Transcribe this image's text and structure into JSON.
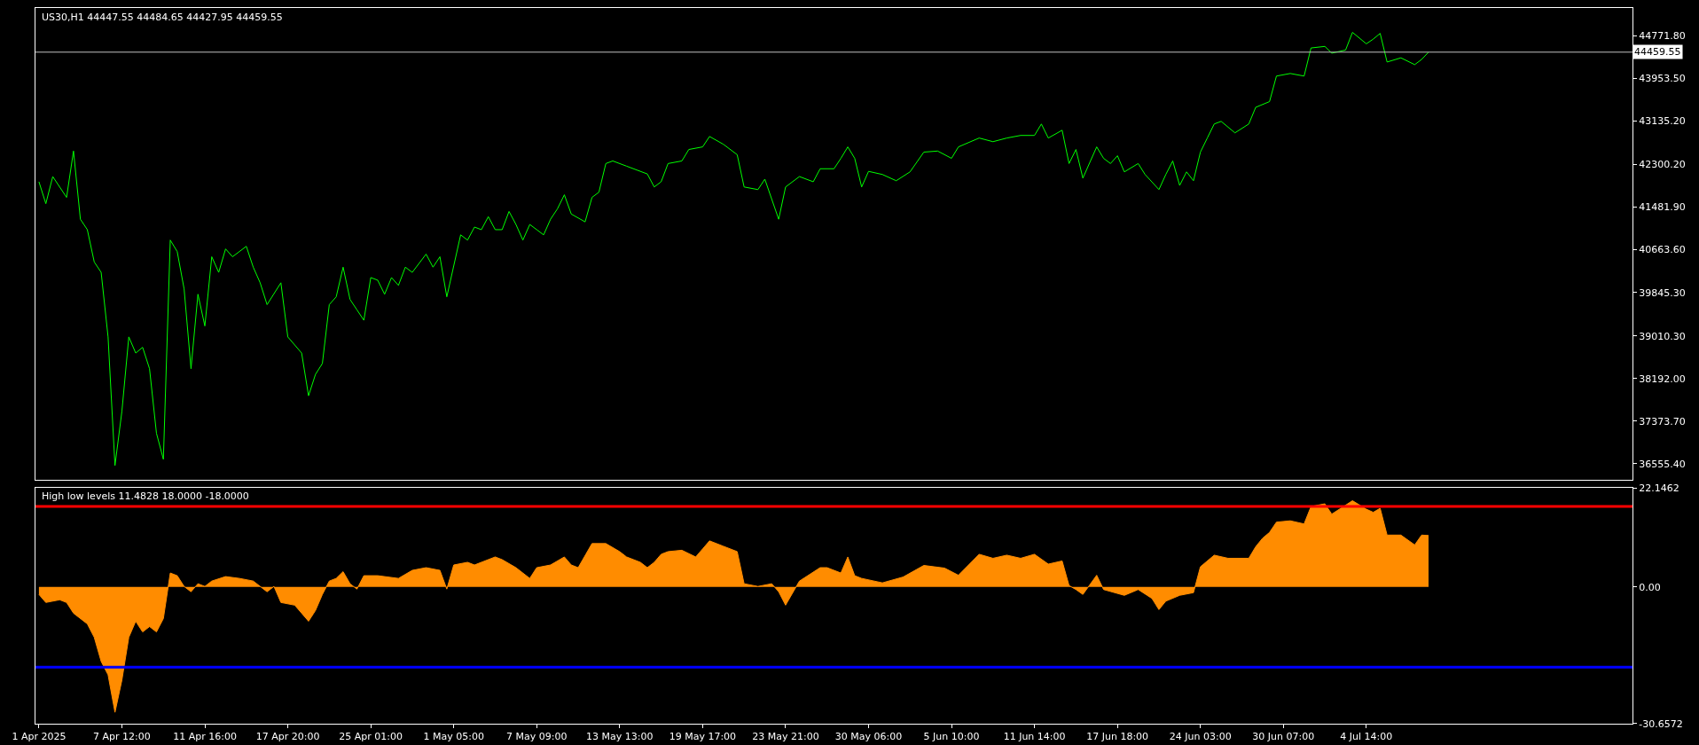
{
  "chart_data": [
    {
      "type": "line",
      "title": "US30,H1 44447.55 44484.65 44427.95 44459.55",
      "color": "#00ff00",
      "categories": [
        null,
        null,
        null,
        null,
        null,
        null,
        null,
        null,
        null,
        null,
        null,
        null,
        null,
        null,
        null,
        null,
        null,
        null,
        null,
        null,
        null,
        null,
        null,
        null,
        null,
        null,
        null,
        null,
        null,
        null,
        null,
        null,
        null,
        null,
        null,
        null,
        null,
        null,
        null,
        null,
        null,
        null,
        null,
        null,
        null,
        null,
        null,
        null,
        null,
        null,
        null,
        null,
        null,
        null,
        null,
        null,
        null,
        null,
        null,
        null,
        null,
        null,
        null,
        null,
        null,
        null,
        null,
        null,
        null,
        null,
        null,
        null,
        null,
        null,
        null,
        null,
        null,
        null,
        null,
        null,
        null,
        null,
        null,
        null,
        null,
        null,
        null,
        null,
        null,
        null,
        null,
        null,
        null,
        null,
        null,
        null,
        null,
        null,
        null,
        null,
        null,
        null,
        null,
        null,
        null,
        null,
        null,
        null,
        null,
        null,
        null,
        null,
        null,
        null,
        null,
        null,
        null,
        null,
        null,
        null,
        null,
        null,
        null,
        null,
        null,
        null,
        null,
        null,
        null,
        null,
        null,
        null,
        null,
        null,
        null,
        null,
        null,
        null,
        null,
        null,
        null,
        null,
        null,
        null,
        null,
        null,
        null,
        null,
        null,
        null,
        null,
        null,
        null,
        null,
        null,
        null,
        null,
        null,
        null,
        null,
        null,
        null,
        null,
        null,
        null,
        null,
        null,
        null,
        null,
        null,
        null,
        null,
        null,
        null,
        null,
        null,
        null,
        null,
        null,
        null,
        null,
        null,
        null,
        null,
        null,
        null,
        null,
        null,
        null,
        null,
        null,
        null,
        null,
        null,
        null,
        null,
        null,
        null,
        null,
        null,
        null,
        null,
        null,
        null,
        null,
        null,
        null,
        null,
        null,
        null,
        null,
        null,
        null,
        null,
        null,
        null,
        null,
        null,
        null,
        null,
        null,
        null,
        null,
        null,
        null,
        null,
        null,
        null,
        null,
        null,
        null
      ],
      "values": [
        41970,
        41550,
        42070,
        null,
        41670,
        42560,
        41250,
        41050,
        40430,
        40230,
        38990,
        36520,
        37560,
        38990,
        38680,
        38790,
        38380,
        37140,
        36640,
        40850,
        40630,
        39910,
        38380,
        39810,
        39200,
        40530,
        40230,
        40680,
        40530,
        null,
        40730,
        40330,
        40030,
        39610,
        null,
        40030,
        38990,
        null,
        38680,
        37860,
        38270,
        38480,
        39610,
        39760,
        40330,
        39710,
        39510,
        39310,
        40130,
        40080,
        39810,
        40130,
        39980,
        40330,
        40230,
        null,
        40580,
        40330,
        40530,
        39760,
        null,
        40950,
        40850,
        41100,
        41050,
        41300,
        41050,
        41050,
        41400,
        41150,
        40850,
        41150,
        41050,
        40950,
        41250,
        41450,
        41720,
        41350,
        null,
        41200,
        41670,
        41770,
        42320,
        42370,
        null,
        42270,
        null,
        null,
        42120,
        41870,
        41970,
        42320,
        null,
        42370,
        42590,
        null,
        42640,
        42840,
        null,
        42690,
        null,
        42490,
        41870,
        null,
        41820,
        42020,
        null,
        41250,
        41870,
        null,
        42070,
        null,
        41970,
        42220,
        null,
        42220,
        42420,
        42640,
        42420,
        41870,
        42170,
        null,
        42110,
        null,
        41990,
        null,
        42160,
        null,
        42540,
        null,
        42560,
        null,
        42420,
        42640,
        null,
        null,
        42810,
        null,
        42740,
        null,
        42810,
        null,
        42860,
        null,
        42860,
        43080,
        42810,
        null,
        42960,
        42320,
        42590,
        42040,
        null,
        42640,
        42420,
        42320,
        42470,
        42160,
        null,
        42320,
        42110,
        null,
        41820,
        42110,
        42370,
        41900,
        42160,
        41990,
        42540,
        42810,
        43080,
        43130,
        null,
        42910,
        null,
        43080,
        43400,
        null,
        43510,
        44000,
        null,
        44050,
        null,
        44000,
        44540,
        null,
        44570,
        44440,
        null,
        44500,
        44840,
        null,
        44620,
        44710,
        44820,
        44270,
        null,
        44350,
        null,
        44220,
        44320,
        44460,
        null,
        null,
        null,
        null,
        null,
        null,
        null,
        null,
        null,
        null,
        null,
        null,
        null,
        null,
        null,
        null,
        null,
        null,
        null,
        null,
        null,
        null,
        null,
        null,
        null,
        null,
        null,
        null,
        null
      ],
      "ylim": [
        36253,
        45308
      ],
      "tick_labels": "y",
      "yticks": [
        {
          "value": 44771.8,
          "label": "44771.80"
        },
        {
          "value": 43953.5,
          "label": "43953.50"
        },
        {
          "value": 43135.2,
          "label": "43135.20"
        },
        {
          "value": 42300.2,
          "label": "42300.20"
        },
        {
          "value": 41481.9,
          "label": "41481.90"
        },
        {
          "value": 40663.6,
          "label": "40663.60"
        },
        {
          "value": 39845.3,
          "label": "39845.30"
        },
        {
          "value": 39010.3,
          "label": "39010.30"
        },
        {
          "value": 38192,
          "label": "38192.00"
        },
        {
          "value": 37373.7,
          "label": "37373.70"
        },
        {
          "value": 36555.4,
          "label": "36555.40"
        }
      ],
      "ref_lines": [
        {
          "axis": "y",
          "value": 44459.55,
          "label": "44459.55",
          "color": "#c0c0c0"
        }
      ]
    },
    {
      "type": "area",
      "title": "High low levels 11.4828 18.0000 -18.0000",
      "color": "#ff8c00",
      "categories": [
        "1 Apr 2025",
        null,
        null,
        null,
        null,
        null,
        null,
        null,
        null,
        null,
        null,
        null,
        "7 Apr 12:00",
        null,
        null,
        null,
        null,
        null,
        null,
        null,
        null,
        null,
        null,
        null,
        "11 Apr 16:00",
        null,
        null,
        null,
        null,
        null,
        null,
        null,
        null,
        null,
        null,
        null,
        "17 Apr 20:00",
        null,
        null,
        null,
        null,
        null,
        null,
        null,
        null,
        null,
        null,
        null,
        "25 Apr 01:00",
        null,
        null,
        null,
        null,
        null,
        null,
        null,
        null,
        null,
        null,
        null,
        "1 May 05:00",
        null,
        null,
        null,
        null,
        null,
        null,
        null,
        null,
        null,
        null,
        null,
        "7 May 09:00",
        null,
        null,
        null,
        null,
        null,
        null,
        null,
        null,
        null,
        null,
        null,
        "13 May 13:00",
        null,
        null,
        null,
        null,
        null,
        null,
        null,
        null,
        null,
        null,
        null,
        "19 May 17:00",
        null,
        null,
        null,
        null,
        null,
        null,
        null,
        null,
        null,
        null,
        null,
        "23 May 21:00",
        null,
        null,
        null,
        null,
        null,
        null,
        null,
        null,
        null,
        null,
        null,
        "30 May 06:00",
        null,
        null,
        null,
        null,
        null,
        null,
        null,
        null,
        null,
        null,
        null,
        "5 Jun 10:00",
        null,
        null,
        null,
        null,
        null,
        null,
        null,
        null,
        null,
        null,
        null,
        "11 Jun 14:00",
        null,
        null,
        null,
        null,
        null,
        null,
        null,
        null,
        null,
        null,
        null,
        "17 Jun 18:00",
        null,
        null,
        null,
        null,
        null,
        null,
        null,
        null,
        null,
        null,
        null,
        "24 Jun 03:00",
        null,
        null,
        null,
        null,
        null,
        null,
        null,
        null,
        null,
        null,
        null,
        "30 Jun 07:00",
        null,
        null,
        null,
        null,
        null,
        null,
        null,
        null,
        null,
        null,
        null,
        "4 Jul 14:00",
        null,
        null,
        null,
        null,
        null,
        null,
        null,
        null,
        null,
        null,
        null,
        null,
        null,
        null,
        null,
        null,
        null,
        null,
        null,
        null,
        null,
        null,
        null,
        null,
        null,
        null,
        null,
        null,
        null,
        null,
        null,
        null,
        null,
        null,
        null,
        null,
        null,
        null
      ],
      "values": [
        -1.7,
        -3.5,
        null,
        -2.9,
        -3.5,
        -5.9,
        null,
        -8.3,
        -11.3,
        -16.7,
        -19.7,
        -28.1,
        -20.9,
        -11.3,
        -7.7,
        -10.1,
        -8.9,
        -10.1,
        -7.1,
        3.1,
        2.5,
        0.1,
        -1.1,
        0.7,
        0.1,
        1.3,
        null,
        2.3,
        null,
        1.9,
        null,
        1.3,
        null,
        -1.1,
        0.1,
        -3.5,
        null,
        -4.1,
        -5.9,
        -7.7,
        -5.3,
        -1.7,
        1.3,
        1.9,
        3.4,
        0.7,
        -0.5,
        2.5,
        null,
        2.5,
        null,
        null,
        1.9,
        null,
        3.7,
        null,
        4.3,
        null,
        3.7,
        -0.5,
        4.9,
        null,
        5.5,
        4.9,
        null,
        null,
        6.7,
        6.1,
        null,
        4.3,
        null,
        1.9,
        4.3,
        null,
        4.9,
        null,
        6.7,
        4.9,
        4.3,
        null,
        9.7,
        null,
        9.7,
        null,
        7.9,
        6.7,
        null,
        5.5,
        4.3,
        5.5,
        7.3,
        7.9,
        null,
        8.2,
        null,
        6.7,
        8.5,
        10.3,
        null,
        9.1,
        null,
        7.9,
        0.7,
        null,
        0.1,
        null,
        0.7,
        -1.1,
        -4.1,
        null,
        1.3,
        null,
        null,
        4.3,
        4.3,
        null,
        3.1,
        6.7,
        2.5,
        1.9,
        null,
        null,
        0.9,
        null,
        null,
        2.2,
        null,
        null,
        4.8,
        null,
        null,
        4.2,
        null,
        2.6,
        null,
        null,
        7.3,
        null,
        6.4,
        null,
        7.1,
        null,
        6.4,
        null,
        7.3,
        null,
        5.1,
        null,
        5.8,
        0.3,
        -0.6,
        -1.7,
        null,
        2.6,
        -0.6,
        null,
        null,
        -1.9,
        null,
        -0.6,
        null,
        -2.6,
        -5.1,
        -3.2,
        null,
        -1.9,
        null,
        -1.3,
        4.5,
        null,
        7.1,
        null,
        6.4,
        null,
        null,
        6.4,
        9.0,
        10.9,
        12.2,
        14.5,
        null,
        14.8,
        null,
        14.1,
        18.0,
        null,
        18.6,
        16.3,
        null,
        null,
        19.3,
        null,
        17.4,
        16.7,
        17.6,
        11.6,
        null,
        11.6,
        null,
        9.4,
        11.6,
        11.5,
        null,
        null,
        null,
        null,
        null,
        null,
        null,
        null,
        null,
        null,
        null,
        null,
        null,
        null,
        null,
        null,
        null,
        null,
        null,
        null,
        null,
        null,
        null,
        null,
        null,
        null,
        null,
        null,
        null
      ],
      "ylim": [
        -30.6572,
        22.1462
      ],
      "yticks": [
        22.1462,
        {
          "value": 0,
          "label": "0.00"
        },
        -30.6572
      ],
      "ref_lines": [
        {
          "axis": "y",
          "value": 18,
          "color": "#ff0000"
        },
        {
          "axis": "y",
          "value": -18,
          "color": "#0000ff"
        }
      ]
    }
  ]
}
